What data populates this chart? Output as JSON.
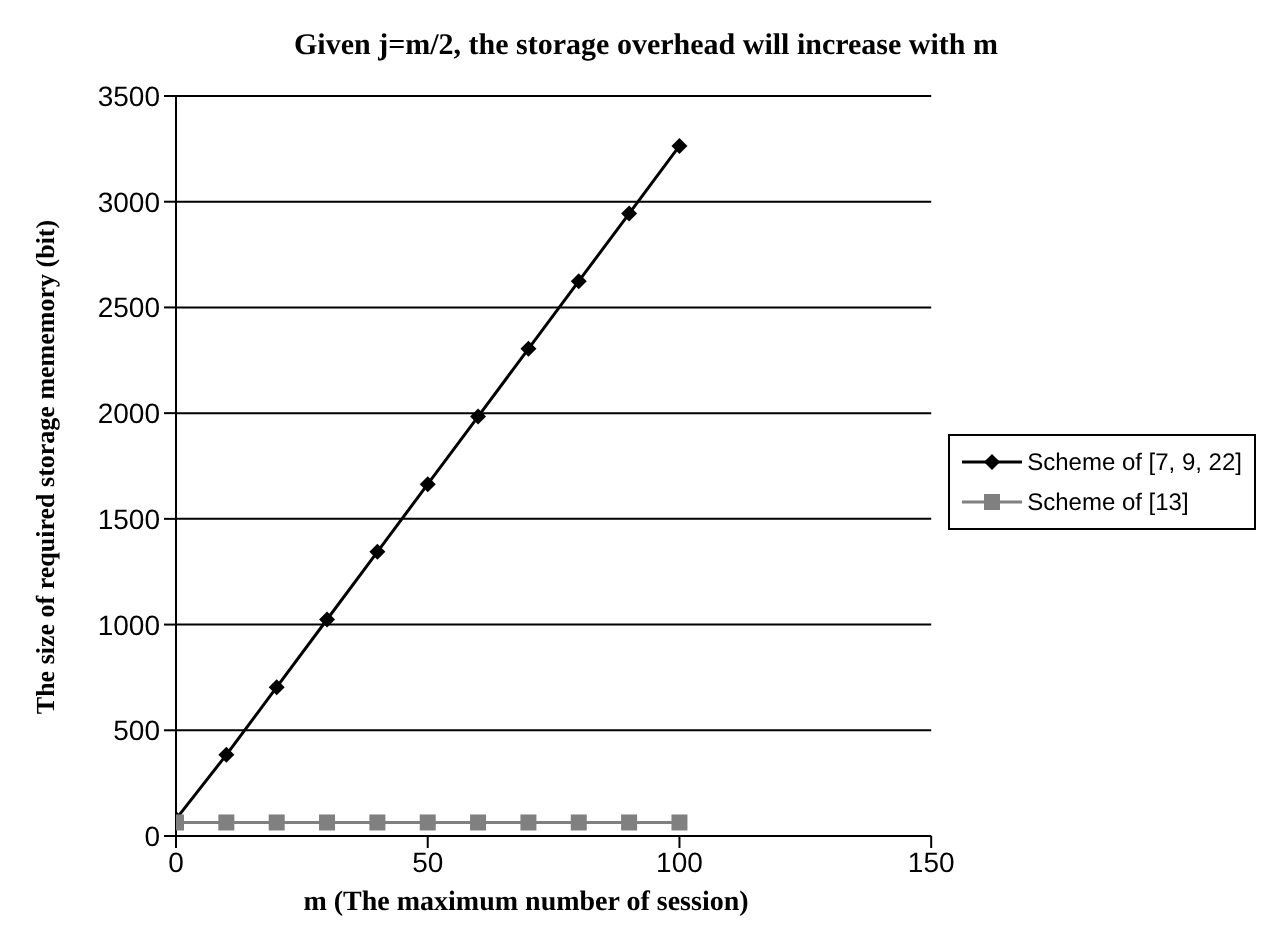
{
  "chart_data": {
    "type": "line",
    "title": "Given j=m/2, the storage overhead will increase with m",
    "xlabel": "m (The maximum number of session)",
    "ylabel": "The size of required storage mememory (bit)",
    "x": [
      0,
      10,
      20,
      30,
      40,
      50,
      60,
      70,
      80,
      90,
      100
    ],
    "series": [
      {
        "name": "Scheme of [7, 9, 22]",
        "color": "#000000",
        "marker": "diamond",
        "values": [
          80,
          384,
          704,
          1024,
          1344,
          1664,
          1984,
          2304,
          2624,
          2944,
          3264
        ]
      },
      {
        "name": "Scheme of [13]",
        "color": "#808080",
        "marker": "square",
        "values": [
          64,
          64,
          64,
          64,
          64,
          64,
          64,
          64,
          64,
          64,
          64
        ]
      }
    ],
    "xlim": [
      0,
      150
    ],
    "xticks": [
      0,
      50,
      100,
      150
    ],
    "ylim": [
      0,
      3500
    ],
    "yticks": [
      0,
      500,
      1000,
      1500,
      2000,
      2500,
      3000,
      3500
    ],
    "grid": "y",
    "legend": "right"
  }
}
